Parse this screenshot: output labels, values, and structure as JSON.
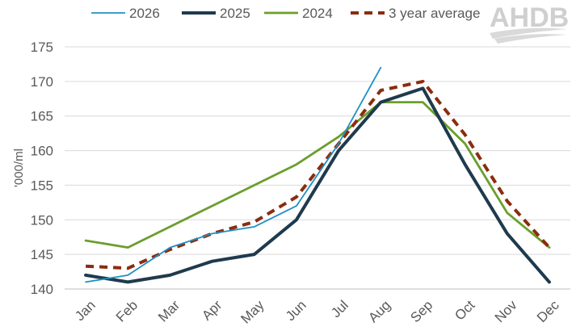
{
  "brand": {
    "logo_text": "AHDB"
  },
  "chart_data": {
    "type": "line",
    "ylabel": "'000/ml",
    "xlabel": "",
    "title": "",
    "ylim": [
      140,
      175
    ],
    "yticks": [
      140,
      145,
      150,
      155,
      160,
      165,
      170,
      175
    ],
    "categories": [
      "Jan",
      "Feb",
      "Mar",
      "Apr",
      "May",
      "Jun",
      "Jul",
      "Aug",
      "Sep",
      "Oct",
      "Nov",
      "Dec"
    ],
    "grid": "horizontal",
    "legend_position": "top",
    "series": [
      {
        "name": "2026",
        "color": "#1f8fc6",
        "style": "solid-thin",
        "values": [
          141,
          142,
          146,
          148,
          149,
          152,
          161,
          172,
          null,
          null,
          null,
          null
        ]
      },
      {
        "name": "2025",
        "color": "#1f3a4d",
        "style": "solid-thick",
        "values": [
          142,
          141,
          142,
          144,
          145,
          150,
          160,
          167,
          169,
          158,
          148,
          141
        ]
      },
      {
        "name": "2024",
        "color": "#6b9e2e",
        "style": "solid",
        "values": [
          147,
          146,
          149,
          152,
          155,
          158,
          162,
          167,
          167,
          161,
          151,
          146
        ]
      },
      {
        "name": "3 year average",
        "color": "#8b2c0f",
        "style": "dashed",
        "values": [
          143.3,
          143,
          145.7,
          148,
          149.7,
          153.3,
          161,
          168.7,
          170,
          162.3,
          152.7,
          146
        ]
      }
    ]
  }
}
